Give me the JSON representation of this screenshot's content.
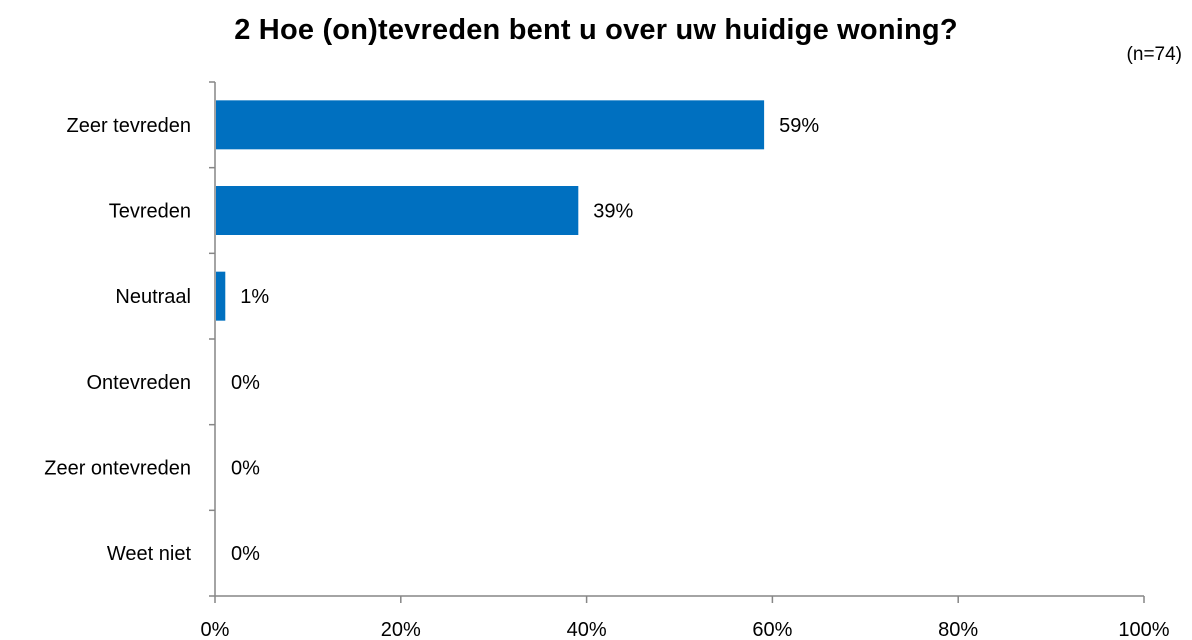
{
  "chart_data": {
    "type": "bar",
    "orientation": "horizontal",
    "title": "2 Hoe (on)tevreden bent u over uw huidige woning?",
    "note": "(n=74)",
    "categories": [
      "Zeer tevreden",
      "Tevreden",
      "Neutraal",
      "Ontevreden",
      "Zeer ontevreden",
      "Weet niet"
    ],
    "values": [
      59,
      39,
      1,
      0,
      0,
      0
    ],
    "value_labels": [
      "59%",
      "39%",
      "1%",
      "0%",
      "0%",
      "0%"
    ],
    "xlim": [
      0,
      100
    ],
    "x_ticks": [
      0,
      20,
      40,
      60,
      80,
      100
    ],
    "x_tick_labels": [
      "0%",
      "20%",
      "40%",
      "60%",
      "80%",
      "100%"
    ],
    "xlabel": "",
    "ylabel": "",
    "grid": false,
    "legend": "none",
    "bar_color": "#0070C0",
    "axis_color": "#868686"
  }
}
